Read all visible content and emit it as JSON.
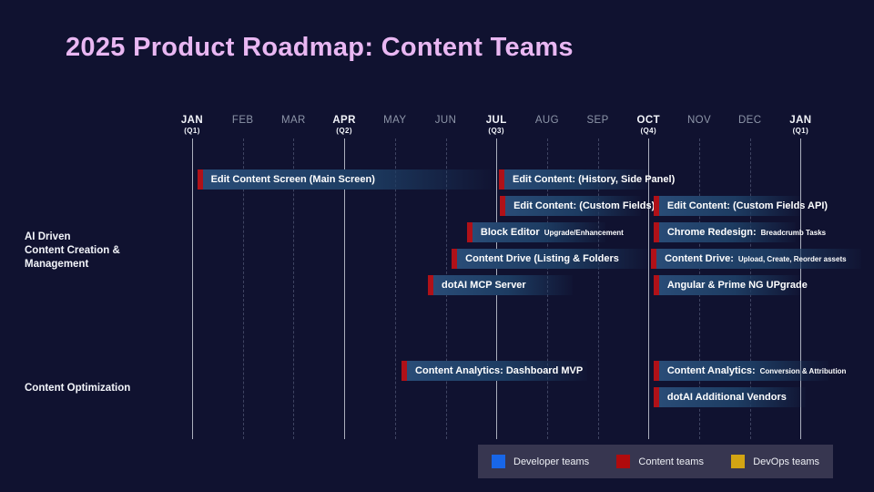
{
  "title": "2025 Product Roadmap: Content Teams",
  "colors": {
    "bg": "#101230",
    "title": "#e9b7f2",
    "text-bright": "#f3f5fa",
    "text-dim": "#8d95a8",
    "grid-major": "#c7cbd6",
    "grid-minor": "#59607e",
    "bar-fill-a": "#2a4d78",
    "bar-fill-b": "#1d3c62",
    "bar-accent": "#b01118",
    "legend-bg": "#373650"
  },
  "chart_data": {
    "type": "gantt",
    "title": "2025 Product Roadmap: Content Teams",
    "x_axis": {
      "unit": "month",
      "range_note": "Jan 2025 through Jan 2026; quarter-start months emphasized with solid gridlines",
      "months": [
        {
          "label": "JAN",
          "sublabel": "(Q1)",
          "quarter": true
        },
        {
          "label": "FEB",
          "sublabel": "",
          "quarter": false
        },
        {
          "label": "MAR",
          "sublabel": "",
          "quarter": false
        },
        {
          "label": "APR",
          "sublabel": "(Q2)",
          "quarter": true
        },
        {
          "label": "MAY",
          "sublabel": "",
          "quarter": false
        },
        {
          "label": "JUN",
          "sublabel": "",
          "quarter": false
        },
        {
          "label": "JUL",
          "sublabel": "(Q3)",
          "quarter": true
        },
        {
          "label": "AUG",
          "sublabel": "",
          "quarter": false
        },
        {
          "label": "SEP",
          "sublabel": "",
          "quarter": false
        },
        {
          "label": "OCT",
          "sublabel": "(Q4)",
          "quarter": true
        },
        {
          "label": "NOV",
          "sublabel": "",
          "quarter": false
        },
        {
          "label": "DEC",
          "sublabel": "",
          "quarter": false
        },
        {
          "label": "JAN",
          "sublabel": "(Q1)",
          "quarter": true
        }
      ]
    },
    "groups": [
      {
        "label": "AI Driven\nContent Creation &\nManagement"
      },
      {
        "label": "Content Optimization"
      }
    ],
    "tasks": [
      {
        "label": "Edit Content Screen (Main Screen)",
        "sublabel": "",
        "start": 0.1,
        "end": 5.9,
        "row": 0,
        "group": 0,
        "team": "Content teams"
      },
      {
        "label": "Edit Content: (History, Side Panel)",
        "sublabel": "",
        "start": 6.05,
        "end": 9.0,
        "row": 0,
        "group": 0,
        "team": "Content teams"
      },
      {
        "label": "Edit Content: (Custom Fields)",
        "sublabel": "",
        "start": 6.07,
        "end": 8.85,
        "row": 1,
        "group": 0,
        "team": "Content teams"
      },
      {
        "label": "Edit Content: (Custom Fields API)",
        "sublabel": "",
        "start": 9.1,
        "end": 12.0,
        "row": 1,
        "group": 0,
        "team": "Content teams"
      },
      {
        "label": "Block Editor",
        "sublabel": "Upgrade/Enhancement",
        "start": 5.42,
        "end": 8.15,
        "row": 2,
        "group": 0,
        "team": "Content teams"
      },
      {
        "label": "Chrome Redesign:",
        "sublabel": "Breadcrumb Tasks",
        "start": 9.1,
        "end": 11.9,
        "row": 2,
        "group": 0,
        "team": "Content teams"
      },
      {
        "label": "Content Drive (Listing & Folders",
        "sublabel": "",
        "start": 5.12,
        "end": 9.0,
        "row": 3,
        "group": 0,
        "team": "Content teams"
      },
      {
        "label": "Content Drive:",
        "sublabel": "Upload, Create, Reorder assets",
        "start": 9.05,
        "end": 13.2,
        "row": 3,
        "group": 0,
        "team": "Content teams"
      },
      {
        "label": "dotAI MCP Server",
        "sublabel": "",
        "start": 4.65,
        "end": 7.5,
        "row": 4,
        "group": 0,
        "team": "Content teams"
      },
      {
        "label": "Angular & Prime NG UPgrade",
        "sublabel": "",
        "start": 9.1,
        "end": 12.0,
        "row": 4,
        "group": 0,
        "team": "Content teams"
      },
      {
        "label": "Content Analytics: Dashboard MVP",
        "sublabel": "",
        "start": 4.13,
        "end": 7.8,
        "row": 5,
        "group": 1,
        "team": "Content teams"
      },
      {
        "label": "Content Analytics:",
        "sublabel": "Conversion & Attribution",
        "start": 9.1,
        "end": 12.55,
        "row": 5,
        "group": 1,
        "team": "Content teams"
      },
      {
        "label": "dotAI Additional Vendors",
        "sublabel": "",
        "start": 9.1,
        "end": 12.1,
        "row": 6,
        "group": 1,
        "team": "Content teams"
      }
    ],
    "legend": [
      {
        "label": "Developer teams",
        "color": "#1866e8"
      },
      {
        "label": "Content teams",
        "color": "#b00b0d"
      },
      {
        "label": "DevOps teams",
        "color": "#d2a413"
      }
    ],
    "legend_position": "bottom-right"
  }
}
